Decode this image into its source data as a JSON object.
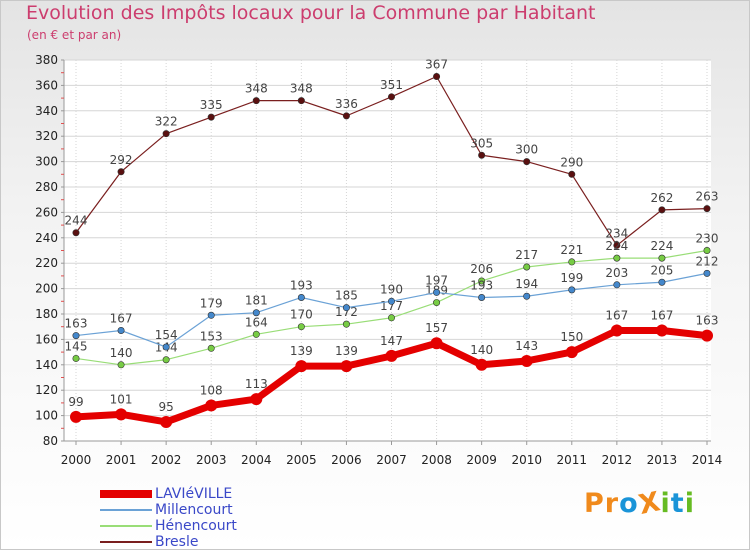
{
  "title": "Evolution des Impôts locaux pour la Commune par Habitant",
  "subtitle": "(en € et par an)",
  "logo": {
    "text": "ProXiti",
    "letters": [
      "P",
      "r",
      "o",
      "X",
      "i",
      "t",
      "i"
    ],
    "colors": [
      "#f08a1c",
      "#f08a1c",
      "#1a94d8",
      "#f08a1c",
      "#66bb22",
      "#1a94d8",
      "#66bb22"
    ]
  },
  "chart_data": {
    "type": "line",
    "x": [
      "2000",
      "2001",
      "2002",
      "2003",
      "2004",
      "2005",
      "2006",
      "2007",
      "2008",
      "2009",
      "2010",
      "2011",
      "2012",
      "2013",
      "2014"
    ],
    "ylim": [
      80,
      380
    ],
    "yticks": [
      80,
      100,
      120,
      140,
      160,
      180,
      200,
      220,
      240,
      260,
      280,
      300,
      320,
      340,
      360,
      380
    ],
    "grid": true,
    "legend_position": "bottom-left",
    "series": [
      {
        "name": "Bresle",
        "color": "#7a1f1f",
        "marker": "#5a1010",
        "width": 1.2,
        "values": [
          244,
          292,
          322,
          335,
          348,
          348,
          336,
          351,
          367,
          305,
          300,
          290,
          234,
          262,
          263
        ]
      },
      {
        "name": "Hénencourt",
        "color": "#99dd77",
        "marker": "#77cc44",
        "width": 1.2,
        "values": [
          145,
          140,
          144,
          153,
          164,
          170,
          172,
          177,
          189,
          206,
          217,
          221,
          224,
          224,
          230
        ]
      },
      {
        "name": "Millencourt",
        "color": "#6ba2d6",
        "marker": "#4488cc",
        "width": 1.2,
        "values": [
          163,
          167,
          154,
          179,
          181,
          193,
          185,
          190,
          197,
          193,
          194,
          199,
          203,
          205,
          212
        ]
      },
      {
        "name": "LAVIéVILLE",
        "color": "#e40000",
        "marker": "#e40000",
        "width": 7,
        "values": [
          99,
          101,
          95,
          108,
          113,
          139,
          139,
          147,
          157,
          140,
          143,
          150,
          167,
          167,
          163
        ]
      }
    ]
  }
}
